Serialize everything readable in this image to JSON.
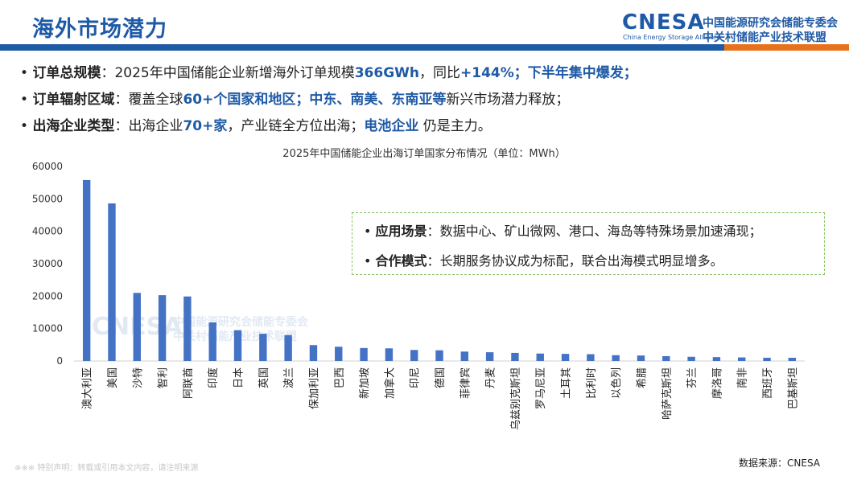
{
  "header": {
    "title": "海外市场潜力",
    "logo": {
      "brand": "CNESA",
      "brand_sub": "China Energy Storage Alliance",
      "org_line1": "中国能源研究会储能专委会",
      "org_line2": "中关村储能产业技术联盟"
    }
  },
  "bullets": [
    {
      "label": "订单总规模",
      "sep": "：",
      "t1": "2025年中国储能企业新增海外订单规模",
      "h1": "366GWh",
      "t2": "，同比",
      "h2": "+144%；下半年集中爆发；"
    },
    {
      "label": "订单辐射区域",
      "sep": "：",
      "t1": "覆盖全球",
      "h1": "60+个国家和地区；中东、南美、东南亚等",
      "t2": "新兴市场潜力释放；",
      "h2": ""
    },
    {
      "label": "出海企业类型",
      "sep": "：",
      "t1": "出海企业",
      "h1": "70+家",
      "t2": "，产业链全方位出海；",
      "h2": "电池企业",
      "t3": "仍是主力。"
    }
  ],
  "callout": [
    {
      "label": "应用场景",
      "sep": "：",
      "text": "数据中心、矿山微网、港口、海岛等特殊场景加速涌现；"
    },
    {
      "label": "合作模式",
      "sep": "：",
      "text": "长期服务协议成为标配，联合出海模式明显增多。"
    }
  ],
  "chart_data": {
    "type": "bar",
    "title": "2025年中国储能企业出海订单国家分布情况（单位：MWh）",
    "xlabel": "",
    "ylabel": "",
    "ylim": [
      0,
      60000
    ],
    "yticks": [
      0,
      10000,
      20000,
      30000,
      40000,
      50000,
      60000
    ],
    "grid": false,
    "bar_color": "#4472c4",
    "categories": [
      "澳大利亚",
      "美国",
      "沙特",
      "智利",
      "阿联酋",
      "印度",
      "日本",
      "英国",
      "波兰",
      "保加利亚",
      "巴西",
      "新加坡",
      "加拿大",
      "印尼",
      "德国",
      "菲律宾",
      "丹麦",
      "乌兹别克斯坦",
      "罗马尼亚",
      "土耳其",
      "比利时",
      "以色列",
      "希腊",
      "哈萨克斯坦",
      "芬兰",
      "摩洛哥",
      "南非",
      "西班牙",
      "巴基斯坦"
    ],
    "values": [
      55800,
      48600,
      21000,
      20300,
      19900,
      11900,
      9500,
      8400,
      8000,
      4900,
      4400,
      4000,
      3900,
      3400,
      3300,
      2900,
      2700,
      2500,
      2300,
      2200,
      2100,
      1800,
      1700,
      1500,
      1300,
      1200,
      1100,
      1000,
      1000
    ]
  },
  "watermark": {
    "brand": "CNESA",
    "line1": "中国能源研究会储能专委会",
    "line2": "中关村储能产业技术联盟"
  },
  "footnote": "※※※ 特别声明：转载或引用本文内容，请注明来源",
  "source": "数据来源：CNESA"
}
